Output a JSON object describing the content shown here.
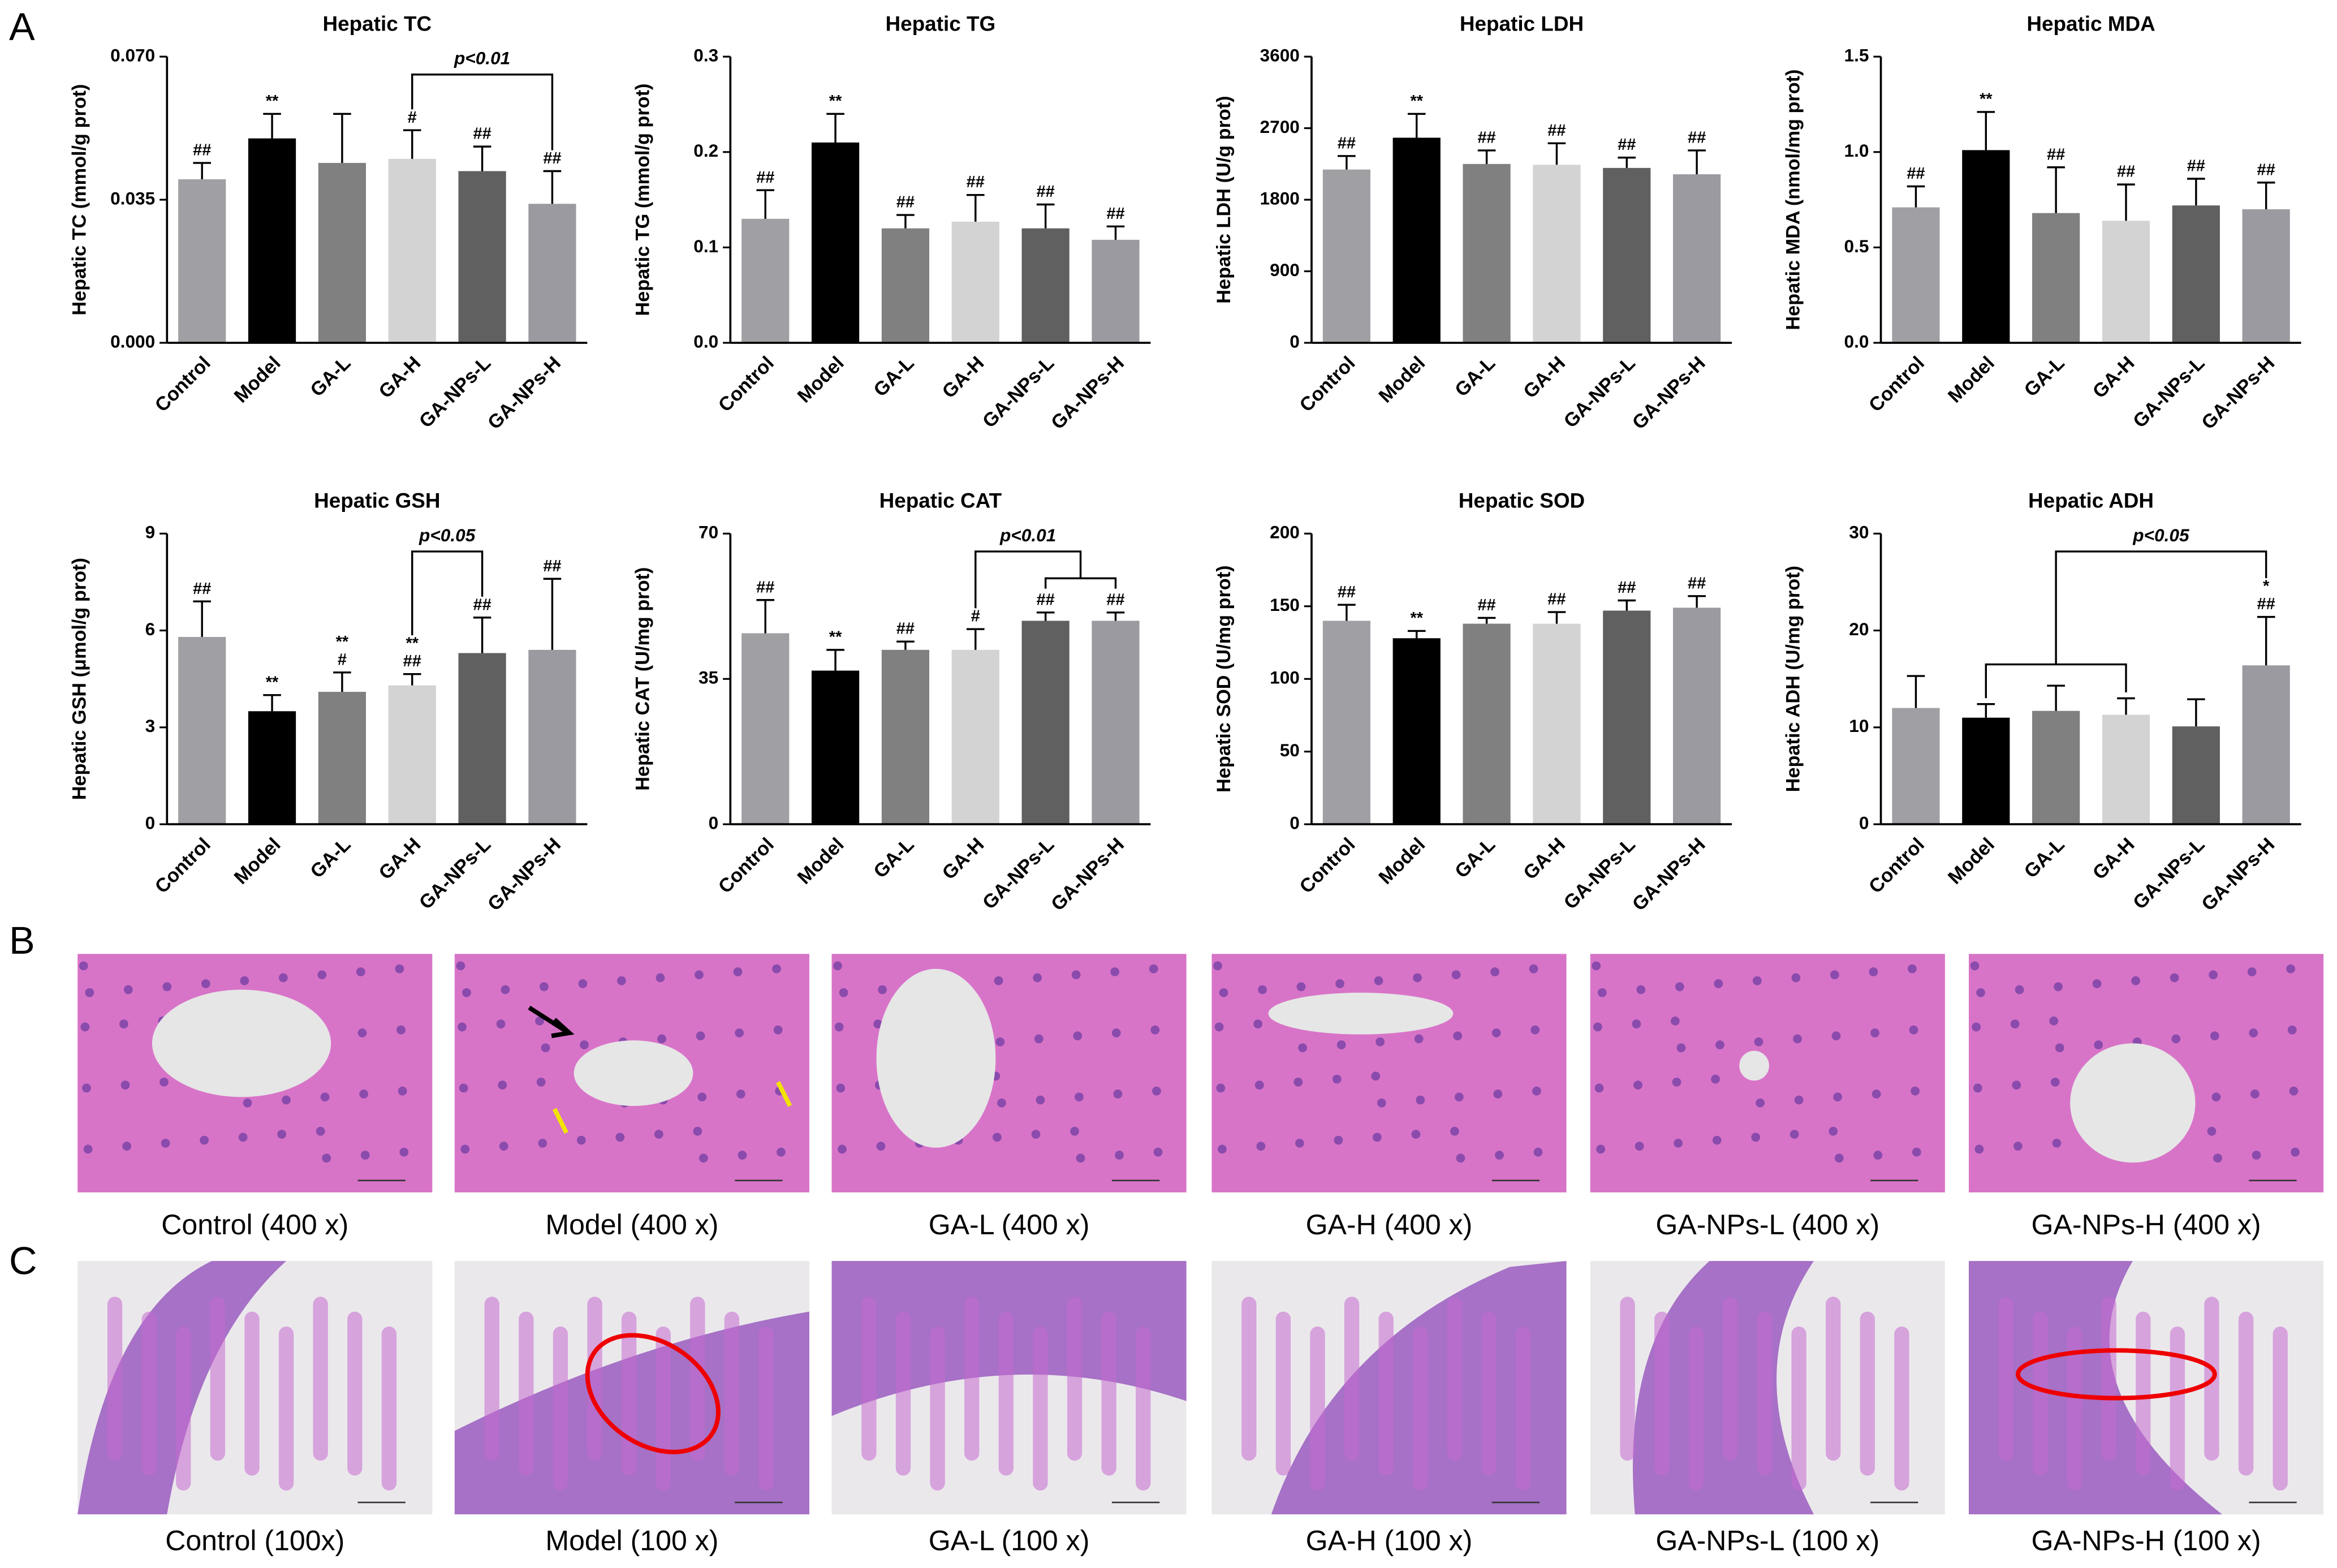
{
  "panel_labels": [
    "A",
    "B",
    "C"
  ],
  "chart_data": [
    {
      "type": "bar",
      "title": "Hepatic TC",
      "ylabel": "Hepatic TC (mmol/g prot)",
      "categories": [
        "Control",
        "Model",
        "GA-L",
        "GA-H",
        "GA-NPs-L",
        "GA-NPs-H"
      ],
      "values": [
        0.04,
        0.05,
        0.044,
        0.045,
        0.042,
        0.034
      ],
      "errors": [
        0.004,
        0.006,
        0.012,
        0.007,
        0.006,
        0.008
      ],
      "colors": [
        "#a0a0a4",
        "#000000",
        "#808080",
        "#d3d3d3",
        "#606060",
        "#9a9aa0"
      ],
      "annotations": [
        [
          "##"
        ],
        [
          "**"
        ],
        [],
        [
          "#"
        ],
        [
          "##"
        ],
        [
          "##"
        ]
      ],
      "comparison": "p<0.01",
      "ylim": [
        0,
        0.07
      ],
      "yticks": [
        {
          "value": 0,
          "label": "0.000"
        },
        {
          "value": 0.035,
          "label": "0.035"
        },
        {
          "value": 0.07,
          "label": "0.070"
        }
      ]
    },
    {
      "type": "bar",
      "title": "Hepatic TG",
      "ylabel": "Hepatic TG (mmol/g prot)",
      "categories": [
        "Control",
        "Model",
        "GA-L",
        "GA-H",
        "GA-NPs-L",
        "GA-NPs-H"
      ],
      "values": [
        0.13,
        0.21,
        0.12,
        0.127,
        0.12,
        0.108
      ],
      "errors": [
        0.03,
        0.03,
        0.014,
        0.028,
        0.025,
        0.014
      ],
      "colors": [
        "#a0a0a4",
        "#000000",
        "#808080",
        "#d3d3d3",
        "#606060",
        "#9a9aa0"
      ],
      "annotations": [
        [
          "##"
        ],
        [
          "**"
        ],
        [
          "##"
        ],
        [
          "##"
        ],
        [
          "##"
        ],
        [
          "##"
        ]
      ],
      "ylim": [
        0,
        0.3
      ],
      "yticks": [
        {
          "value": 0,
          "label": "0.0"
        },
        0.1,
        0.2,
        0.3
      ]
    },
    {
      "type": "bar",
      "title": "Hepatic LDH",
      "ylabel": "Hepatic LDH (U/g prot)",
      "categories": [
        "Control",
        "Model",
        "GA-L",
        "GA-H",
        "GA-NPs-L",
        "GA-NPs-H"
      ],
      "values": [
        2180,
        2580,
        2250,
        2240,
        2200,
        2120
      ],
      "errors": [
        170,
        300,
        170,
        270,
        130,
        300
      ],
      "colors": [
        "#a0a0a4",
        "#000000",
        "#808080",
        "#d3d3d3",
        "#606060",
        "#9a9aa0"
      ],
      "annotations": [
        [
          "##"
        ],
        [
          "**"
        ],
        [
          "##"
        ],
        [
          "##"
        ],
        [
          "##"
        ],
        [
          "##"
        ]
      ],
      "ylim": [
        0,
        3600
      ],
      "yticks": [
        0,
        900,
        1800,
        2700,
        3600
      ]
    },
    {
      "type": "bar",
      "title": "Hepatic MDA",
      "ylabel": "Hepatic MDA (nmol/mg prot)",
      "categories": [
        "Control",
        "Model",
        "GA-L",
        "GA-H",
        "GA-NPs-L",
        "GA-NPs-H"
      ],
      "values": [
        0.71,
        1.01,
        0.68,
        0.64,
        0.72,
        0.7
      ],
      "errors": [
        0.11,
        0.2,
        0.24,
        0.19,
        0.14,
        0.14
      ],
      "colors": [
        "#a0a0a4",
        "#000000",
        "#808080",
        "#d3d3d3",
        "#606060",
        "#9a9aa0"
      ],
      "annotations": [
        [
          "##"
        ],
        [
          "**"
        ],
        [
          "##"
        ],
        [
          "##"
        ],
        [
          "##"
        ],
        [
          "##"
        ]
      ],
      "ylim": [
        0,
        1.5
      ],
      "yticks": [
        {
          "value": 0,
          "label": "0.0"
        },
        0.5,
        {
          "value": 1,
          "label": "1.0"
        },
        1.5
      ]
    },
    {
      "type": "bar",
      "title": "Hepatic GSH",
      "ylabel": "Hepatic GSH (μmol/g prot)",
      "categories": [
        "Control",
        "Model",
        "GA-L",
        "GA-H",
        "GA-NPs-L",
        "GA-NPs-H"
      ],
      "values": [
        5.8,
        3.5,
        4.1,
        4.3,
        5.3,
        5.4
      ],
      "errors": [
        1.1,
        0.5,
        0.6,
        0.35,
        1.1,
        2.2
      ],
      "colors": [
        "#a0a0a4",
        "#000000",
        "#808080",
        "#d3d3d3",
        "#606060",
        "#9a9aa0"
      ],
      "annotations": [
        [
          "##"
        ],
        [
          "**"
        ],
        [
          "**",
          "#"
        ],
        [
          "**",
          "##"
        ],
        [
          "##"
        ],
        [
          "##"
        ]
      ],
      "comparison": "p<0.05",
      "ylim": [
        0,
        9
      ],
      "yticks": [
        0,
        3,
        6,
        9
      ]
    },
    {
      "type": "bar",
      "title": "Hepatic CAT",
      "ylabel": "Hepatic CAT (U/mg prot)",
      "categories": [
        "Control",
        "Model",
        "GA-L",
        "GA-H",
        "GA-NPs-L",
        "GA-NPs-H"
      ],
      "values": [
        46,
        37,
        42,
        42,
        49,
        49
      ],
      "errors": [
        8,
        5,
        2,
        5,
        2,
        2
      ],
      "colors": [
        "#a0a0a4",
        "#000000",
        "#808080",
        "#d3d3d3",
        "#606060",
        "#9a9aa0"
      ],
      "annotations": [
        [
          "##"
        ],
        [
          "**"
        ],
        [
          "##"
        ],
        [
          "#"
        ],
        [
          "##"
        ],
        [
          "##"
        ]
      ],
      "comparison": "p<0.01",
      "ylim": [
        0,
        70
      ],
      "yticks": [
        0,
        35,
        70
      ]
    },
    {
      "type": "bar",
      "title": "Hepatic SOD",
      "ylabel": "Hepatic SOD (U/mg prot)",
      "categories": [
        "Control",
        "Model",
        "GA-L",
        "GA-H",
        "GA-NPs-L",
        "GA-NPs-H"
      ],
      "values": [
        140,
        128,
        138,
        138,
        147,
        149
      ],
      "errors": [
        11,
        5,
        4,
        8,
        7,
        8
      ],
      "colors": [
        "#a0a0a4",
        "#000000",
        "#808080",
        "#d3d3d3",
        "#606060",
        "#9a9aa0"
      ],
      "annotations": [
        [
          "##"
        ],
        [
          "**"
        ],
        [
          "##"
        ],
        [
          "##"
        ],
        [
          "##"
        ],
        [
          "##"
        ]
      ],
      "ylim": [
        0,
        200
      ],
      "yticks": [
        0,
        50,
        100,
        150,
        200
      ]
    },
    {
      "type": "bar",
      "title": "Hepatic ADH",
      "ylabel": "Hepatic ADH (U/mg prot)",
      "categories": [
        "Control",
        "Model",
        "GA-L",
        "GA-H",
        "GA-NPs-L",
        "GA-NPs-H"
      ],
      "values": [
        12,
        11,
        11.7,
        11.3,
        10.1,
        16.4
      ],
      "errors": [
        3.3,
        1.4,
        2.6,
        1.7,
        2.8,
        5
      ],
      "colors": [
        "#a0a0a4",
        "#000000",
        "#808080",
        "#d3d3d3",
        "#606060",
        "#9a9aa0"
      ],
      "annotations": [
        [],
        [],
        [],
        [],
        [],
        [
          "*",
          "##"
        ]
      ],
      "comparison": "p<0.05",
      "ylim": [
        0,
        30
      ],
      "yticks": [
        0,
        10,
        20,
        30
      ]
    }
  ],
  "micrographs_400x": [
    "Control (400 x)",
    "Model (400 x)",
    "GA-L (400 x)",
    "GA-H (400 x)",
    "GA-NPs-L (400 x)",
    "GA-NPs-H (400 x)"
  ],
  "micrographs_100x": [
    "Control (100x)",
    "Model (100 x)",
    "GA-L (100 x)",
    "GA-H (100 x)",
    "GA-NPs-L (100 x)",
    "GA-NPs-H (100 x)"
  ]
}
